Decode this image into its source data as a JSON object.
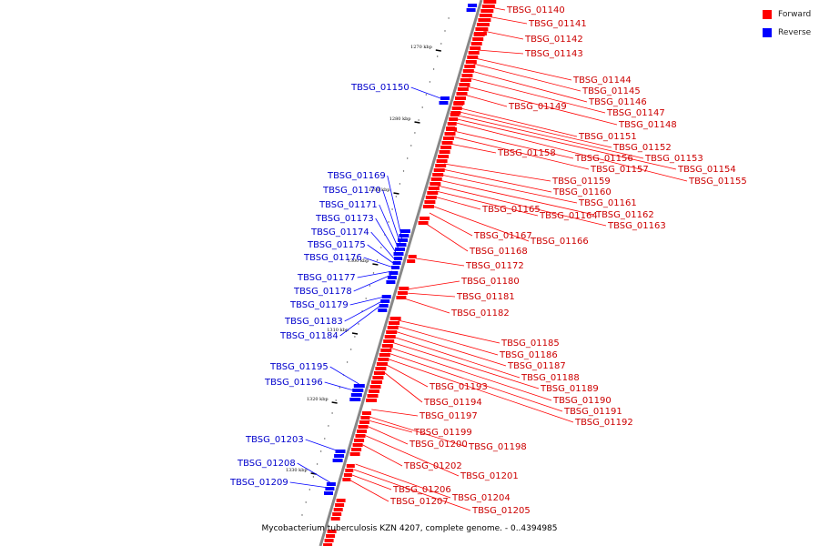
{
  "caption": "Mycobacterium tuberculosis KZN 4207, complete genome. - 0..4394985",
  "legend": [
    {
      "label": "Forward",
      "color": "#ff0000"
    },
    {
      "label": "Reverse",
      "color": "#0000ff"
    }
  ],
  "colors": {
    "forward": "#ff0000",
    "reverse": "#0000ff",
    "backbone": "#888888"
  },
  "ticks": [
    "1270 kbp",
    "1280 kbp",
    "1290 kbp",
    "1300 kbp",
    "1310 kbp",
    "1320 kbp",
    "1330 kbp"
  ],
  "forward_genes": [
    "TBSG_01140",
    "TBSG_01141",
    "TBSG_01142",
    "TBSG_01143",
    "TBSG_01144",
    "TBSG_01145",
    "TBSG_01146",
    "TBSG_01147",
    "TBSG_01148",
    "TBSG_01149",
    "TBSG_01151",
    "TBSG_01152",
    "TBSG_01153",
    "TBSG_01154",
    "TBSG_01155",
    "TBSG_01156",
    "TBSG_01157",
    "TBSG_01158",
    "TBSG_01159",
    "TBSG_01160",
    "TBSG_01161",
    "TBSG_01162",
    "TBSG_01163",
    "TBSG_01164",
    "TBSG_01165",
    "TBSG_01166",
    "TBSG_01167",
    "TBSG_01168",
    "TBSG_01172",
    "TBSG_01180",
    "TBSG_01181",
    "TBSG_01182",
    "TBSG_01185",
    "TBSG_01186",
    "TBSG_01187",
    "TBSG_01188",
    "TBSG_01189",
    "TBSG_01190",
    "TBSG_01191",
    "TBSG_01192",
    "TBSG_01193",
    "TBSG_01194",
    "TBSG_01197",
    "TBSG_01198",
    "TBSG_01199",
    "TBSG_01200",
    "TBSG_01201",
    "TBSG_01202",
    "TBSG_01204",
    "TBSG_01205",
    "TBSG_01206",
    "TBSG_01207"
  ],
  "reverse_genes": [
    "TBSG_01150",
    "TBSG_01169",
    "TBSG_01170",
    "TBSG_01171",
    "TBSG_01173",
    "TBSG_01174",
    "TBSG_01175",
    "TBSG_01176",
    "TBSG_01177",
    "TBSG_01178",
    "TBSG_01179",
    "TBSG_01183",
    "TBSG_01184",
    "TBSG_01195",
    "TBSG_01196",
    "TBSG_01203",
    "TBSG_01208",
    "TBSG_01209"
  ]
}
